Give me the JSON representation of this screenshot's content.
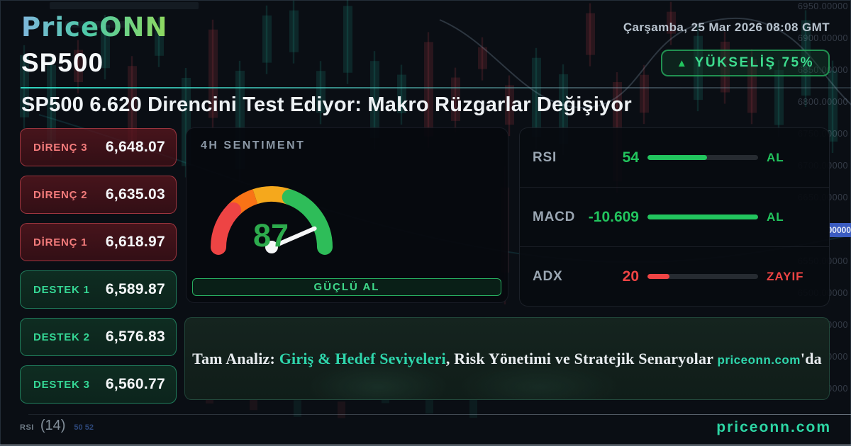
{
  "brand": {
    "logo": "PriceONN"
  },
  "header": {
    "datetime": "Çarşamba, 25 Mar 2026 08:08 GMT",
    "symbol": "SP500",
    "badge_icon": "▲",
    "badge_label": "YÜKSELİŞ 75%",
    "headline": "SP500 6.620 Direncini Test Ediyor: Makro Rüzgarlar Değişiyor"
  },
  "levels": [
    {
      "kind": "resistance",
      "label": "DİRENÇ 3",
      "value": "6,648.07"
    },
    {
      "kind": "resistance",
      "label": "DİRENÇ 2",
      "value": "6,635.03"
    },
    {
      "kind": "resistance",
      "label": "DİRENÇ 1",
      "value": "6,618.97"
    },
    {
      "kind": "support",
      "label": "DESTEK 1",
      "value": "6,589.87"
    },
    {
      "kind": "support",
      "label": "DESTEK 2",
      "value": "6,576.83"
    },
    {
      "kind": "support",
      "label": "DESTEK 3",
      "value": "6,560.77"
    }
  ],
  "sentiment": {
    "title": "4H SENTIMENT",
    "score": 87,
    "action_label": "GÜÇLÜ AL"
  },
  "indicators": [
    {
      "name": "RSI",
      "value": "54",
      "fill_pct": 54,
      "status": "AL",
      "tone": "green"
    },
    {
      "name": "MACD",
      "value": "-10.609",
      "fill_pct": 100,
      "status": "AL",
      "tone": "green"
    },
    {
      "name": "ADX",
      "value": "20",
      "fill_pct": 20,
      "status": "ZAYIF",
      "tone": "red"
    }
  ],
  "banner": {
    "prefix": "Tam Analiz: ",
    "link": "Giriş & Hedef Seviyeleri",
    "middle": ", Risk Yönetimi ve Stratejik Senaryolar ",
    "site": "priceonn.com",
    "suffix": "'da"
  },
  "footer": {
    "watermark": "priceonn.com",
    "chart_label": "RSI",
    "chart_param": "(14)",
    "chart_values": "50 52"
  },
  "background": {
    "axis_labels": [
      "6950.00000",
      "6900.00000",
      "6850.00000",
      "6800.00000",
      "6750.00000",
      "6700.00000",
      "6650.00000",
      "6600.00000",
      "6550.00000",
      "6500.00000",
      "6450.00000",
      "6400.00000",
      "6350.00000"
    ],
    "tag_index": 7
  },
  "colors": {
    "green": "#22c55e",
    "red": "#ef4444",
    "teal": "#2dd6a4",
    "amber": "#f5a81c",
    "orange": "#f97316",
    "tag_blue": "#3b5cc0"
  }
}
